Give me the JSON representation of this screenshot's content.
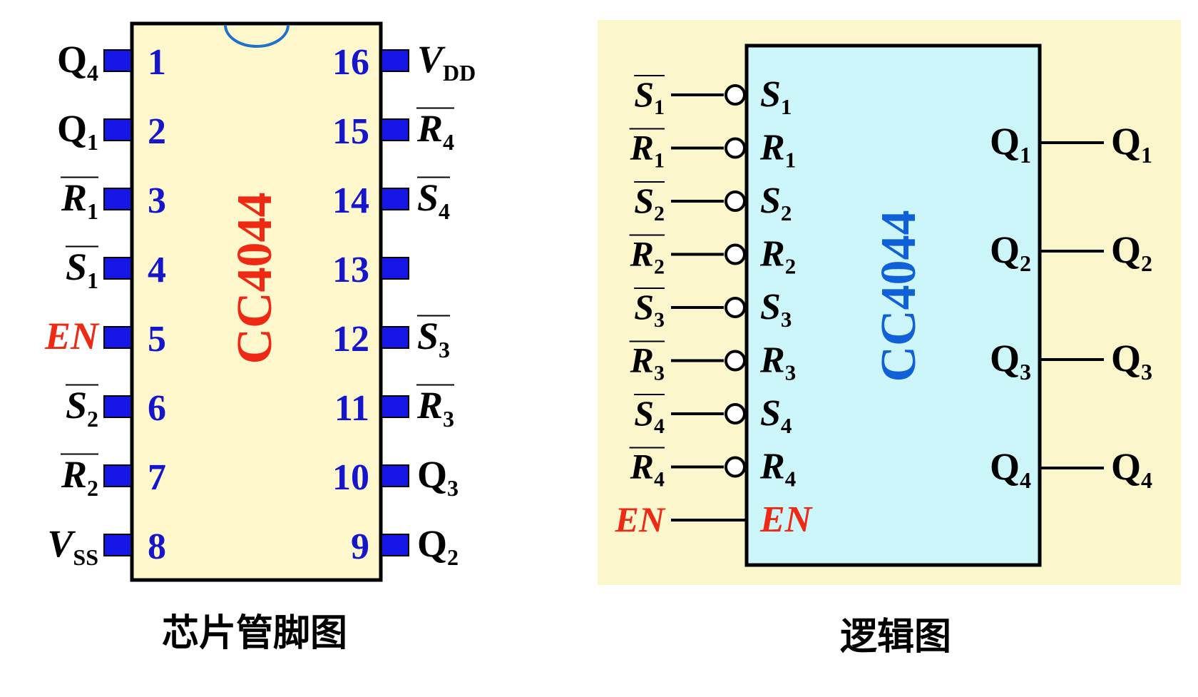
{
  "pinout": {
    "chip_label": "CC4044",
    "caption": "芯片管脚图",
    "left_pins": [
      {
        "num": "1",
        "label": "Q",
        "sub": "4",
        "italic": false,
        "bar": false,
        "red": false
      },
      {
        "num": "2",
        "label": "Q",
        "sub": "1",
        "italic": false,
        "bar": false,
        "red": false
      },
      {
        "num": "3",
        "label": "R",
        "sub": "1",
        "italic": true,
        "bar": true,
        "red": false
      },
      {
        "num": "4",
        "label": "S",
        "sub": "1",
        "italic": true,
        "bar": true,
        "red": false
      },
      {
        "num": "5",
        "label": "EN",
        "sub": "",
        "italic": true,
        "bar": false,
        "red": true
      },
      {
        "num": "6",
        "label": "S",
        "sub": "2",
        "italic": true,
        "bar": true,
        "red": false
      },
      {
        "num": "7",
        "label": "R",
        "sub": "2",
        "italic": true,
        "bar": true,
        "red": false
      },
      {
        "num": "8",
        "label": "V",
        "sub": "SS",
        "italic": true,
        "bar": false,
        "red": false
      }
    ],
    "right_pins": [
      {
        "num": "16",
        "label": "V",
        "sub": "DD",
        "italic": true,
        "bar": false,
        "red": false
      },
      {
        "num": "15",
        "label": "R",
        "sub": "4",
        "italic": true,
        "bar": true,
        "red": false
      },
      {
        "num": "14",
        "label": "S",
        "sub": "4",
        "italic": true,
        "bar": true,
        "red": false
      },
      {
        "num": "13",
        "label": "",
        "sub": "",
        "italic": false,
        "bar": false,
        "red": false
      },
      {
        "num": "12",
        "label": "S",
        "sub": "3",
        "italic": true,
        "bar": true,
        "red": false
      },
      {
        "num": "11",
        "label": "R",
        "sub": "3",
        "italic": true,
        "bar": true,
        "red": false
      },
      {
        "num": "10",
        "label": "Q",
        "sub": "3",
        "italic": false,
        "bar": false,
        "red": false
      },
      {
        "num": "9",
        "label": "Q",
        "sub": "2",
        "italic": false,
        "bar": false,
        "red": false
      }
    ]
  },
  "logic": {
    "chip_label": "CC4044",
    "caption": "逻辑图",
    "inputs": [
      {
        "label": "S",
        "sub": "1",
        "bar": true,
        "bubble": true,
        "red": false
      },
      {
        "label": "R",
        "sub": "1",
        "bar": true,
        "bubble": true,
        "red": false
      },
      {
        "label": "S",
        "sub": "2",
        "bar": true,
        "bubble": true,
        "red": false
      },
      {
        "label": "R",
        "sub": "2",
        "bar": true,
        "bubble": true,
        "red": false
      },
      {
        "label": "S",
        "sub": "3",
        "bar": true,
        "bubble": true,
        "red": false
      },
      {
        "label": "R",
        "sub": "3",
        "bar": true,
        "bubble": true,
        "red": false
      },
      {
        "label": "S",
        "sub": "4",
        "bar": true,
        "bubble": true,
        "red": false
      },
      {
        "label": "R",
        "sub": "4",
        "bar": true,
        "bubble": true,
        "red": false
      },
      {
        "label": "EN",
        "sub": "",
        "bar": false,
        "bubble": false,
        "red": true
      }
    ],
    "outputs": [
      {
        "label": "Q",
        "sub": "1"
      },
      {
        "label": "Q",
        "sub": "2"
      },
      {
        "label": "Q",
        "sub": "3"
      },
      {
        "label": "Q",
        "sub": "4"
      }
    ]
  },
  "colors": {
    "pinout_bg": "#fff8cc",
    "logic_panel_bg": "#fcf6cc",
    "logic_box_bg": "#cdf6fb",
    "pin_fill": "#1515e6",
    "pin_number": "#1515cc",
    "red": "#ee2a14",
    "chip_label_blue": "#1060d8",
    "black": "#000000",
    "notch": "#1e73c8"
  }
}
